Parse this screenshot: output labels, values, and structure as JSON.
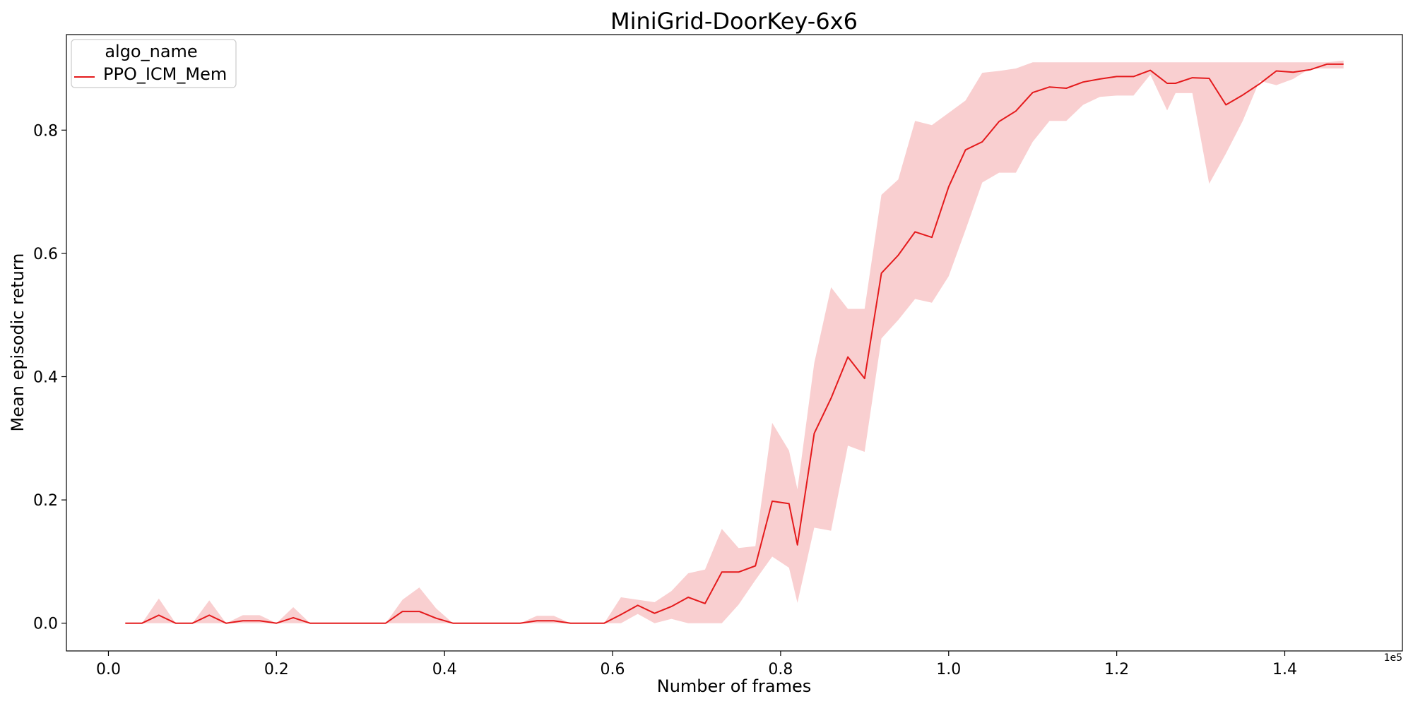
{
  "chart_data": {
    "type": "line",
    "title": "MiniGrid-DoorKey-6x6",
    "xlabel": "Number of frames",
    "ylabel": "Mean episodic return",
    "x_offset_label": "1e5",
    "xlim": [
      -0.05,
      1.54
    ],
    "ylim": [
      -0.045,
      0.955
    ],
    "x_ticks": [
      0.0,
      0.2,
      0.4,
      0.6,
      0.8,
      1.0,
      1.2,
      1.4
    ],
    "x_tick_labels": [
      "0.0",
      "0.2",
      "0.4",
      "0.6",
      "0.8",
      "1.0",
      "1.2",
      "1.4"
    ],
    "y_ticks": [
      0.0,
      0.2,
      0.4,
      0.6,
      0.8
    ],
    "y_tick_labels": [
      "0.0",
      "0.2",
      "0.4",
      "0.6",
      "0.8"
    ],
    "grid": false,
    "legend": {
      "title": "algo_name",
      "placement": "upper-left"
    },
    "colors": {
      "line": "#e41a1c",
      "band": "#f4a0a2"
    },
    "series": [
      {
        "name": "PPO_ICM_Mem",
        "x": [
          0.02,
          0.04,
          0.06,
          0.08,
          0.1,
          0.12,
          0.14,
          0.16,
          0.18,
          0.2,
          0.22,
          0.24,
          0.26,
          0.28,
          0.3,
          0.31,
          0.33,
          0.35,
          0.37,
          0.39,
          0.41,
          0.43,
          0.45,
          0.47,
          0.49,
          0.51,
          0.53,
          0.55,
          0.57,
          0.59,
          0.61,
          0.63,
          0.65,
          0.67,
          0.69,
          0.71,
          0.73,
          0.75,
          0.77,
          0.79,
          0.81,
          0.82,
          0.84,
          0.86,
          0.88,
          0.9,
          0.92,
          0.94,
          0.96,
          0.98,
          1.0,
          1.02,
          1.04,
          1.06,
          1.08,
          1.1,
          1.12,
          1.14,
          1.16,
          1.18,
          1.2,
          1.22,
          1.24,
          1.26,
          1.27,
          1.29,
          1.31,
          1.33,
          1.35,
          1.37,
          1.39,
          1.41,
          1.43,
          1.45,
          1.47
        ],
        "y": [
          0.0,
          0.0,
          0.013,
          0.0,
          0.0,
          0.013,
          0.0,
          0.004,
          0.004,
          0.0,
          0.009,
          0.0,
          0.0,
          0.0,
          0.0,
          0.0,
          0.0,
          0.019,
          0.019,
          0.008,
          0.0,
          0.0,
          0.0,
          0.0,
          0.0,
          0.004,
          0.004,
          0.0,
          0.0,
          0.0,
          0.014,
          0.029,
          0.016,
          0.027,
          0.042,
          0.032,
          0.083,
          0.083,
          0.093,
          0.198,
          0.194,
          0.127,
          0.308,
          0.365,
          0.432,
          0.397,
          0.568,
          0.597,
          0.635,
          0.626,
          0.708,
          0.768,
          0.781,
          0.814,
          0.831,
          0.861,
          0.87,
          0.868,
          0.878,
          0.883,
          0.887,
          0.887,
          0.897,
          0.876,
          0.876,
          0.885,
          0.884,
          0.841,
          0.857,
          0.875,
          0.896,
          0.894,
          0.898,
          0.907,
          0.907
        ],
        "lower": [
          0.0,
          0.0,
          0.0,
          0.0,
          0.0,
          0.0,
          0.0,
          0.0,
          0.0,
          0.0,
          0.0,
          0.0,
          0.0,
          0.0,
          0.0,
          0.0,
          0.0,
          0.0,
          0.0,
          0.0,
          0.0,
          0.0,
          0.0,
          0.0,
          0.0,
          0.0,
          0.0,
          0.0,
          0.0,
          0.0,
          0.0,
          0.015,
          0.0,
          0.007,
          0.0,
          0.0,
          0.0,
          0.03,
          0.07,
          0.108,
          0.09,
          0.033,
          0.155,
          0.15,
          0.288,
          0.278,
          0.462,
          0.492,
          0.526,
          0.52,
          0.563,
          0.638,
          0.715,
          0.731,
          0.731,
          0.781,
          0.815,
          0.815,
          0.841,
          0.854,
          0.856,
          0.856,
          0.89,
          0.832,
          0.86,
          0.86,
          0.713,
          0.762,
          0.815,
          0.88,
          0.873,
          0.883,
          0.9,
          0.9,
          0.9
        ],
        "upper": [
          0.0,
          0.0,
          0.04,
          0.0,
          0.0,
          0.037,
          0.0,
          0.013,
          0.013,
          0.0,
          0.026,
          0.0,
          0.0,
          0.0,
          0.0,
          0.0,
          0.0,
          0.038,
          0.058,
          0.024,
          0.0,
          0.0,
          0.0,
          0.0,
          0.0,
          0.012,
          0.012,
          0.0,
          0.0,
          0.0,
          0.042,
          0.038,
          0.034,
          0.052,
          0.081,
          0.087,
          0.153,
          0.122,
          0.125,
          0.325,
          0.28,
          0.217,
          0.422,
          0.545,
          0.51,
          0.51,
          0.695,
          0.72,
          0.815,
          0.808,
          0.828,
          0.848,
          0.893,
          0.896,
          0.9,
          0.91,
          0.91,
          0.91,
          0.91,
          0.91,
          0.91,
          0.91,
          0.91,
          0.91,
          0.91,
          0.91,
          0.91,
          0.91,
          0.91,
          0.91,
          0.91,
          0.91,
          0.91,
          0.91,
          0.913
        ]
      }
    ]
  }
}
